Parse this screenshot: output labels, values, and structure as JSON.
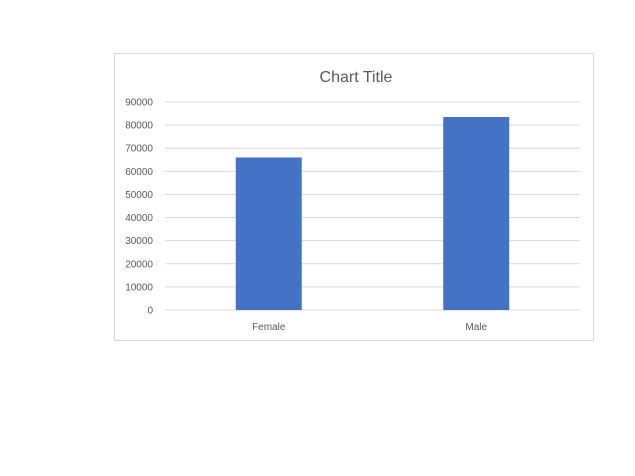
{
  "chart_data": {
    "type": "bar",
    "title": "Chart Title",
    "categories": [
      "Female",
      "Male"
    ],
    "series": [
      {
        "values": [
          66000,
          83500
        ]
      }
    ],
    "ylim": [
      0,
      90000
    ],
    "yticks": [
      "0",
      "10000",
      "20000",
      "30000",
      "40000",
      "50000",
      "60000",
      "70000",
      "80000",
      "90000"
    ],
    "grid": true,
    "legend": "none",
    "bar_color": "#4472C4"
  }
}
